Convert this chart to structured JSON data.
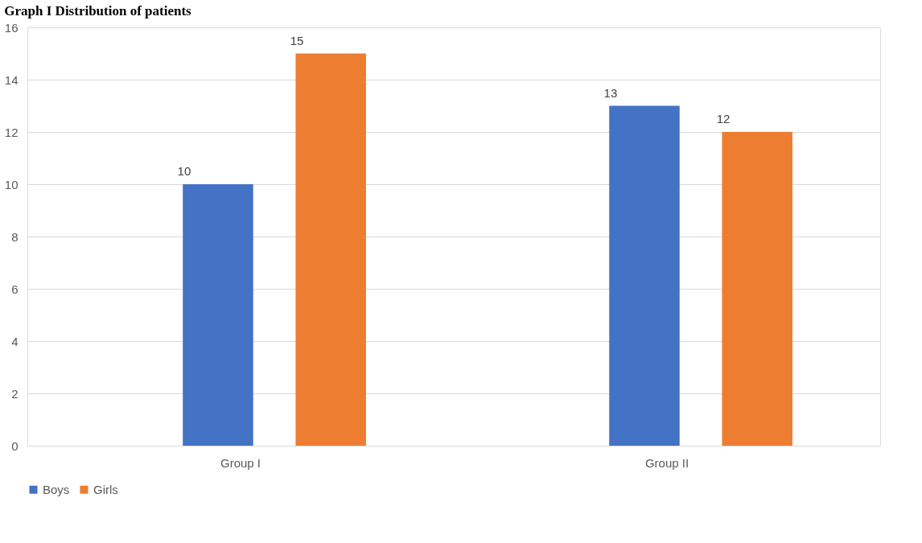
{
  "chart_data": {
    "type": "bar",
    "title": "Graph I Distribution of patients",
    "categories": [
      "Group I",
      "Group II"
    ],
    "series": [
      {
        "name": "Boys",
        "color": "#4472c4",
        "values": [
          10,
          13
        ]
      },
      {
        "name": "Girls",
        "color": "#ed7d31",
        "values": [
          15,
          12
        ]
      }
    ],
    "ylim": [
      0,
      16
    ],
    "yticks": [
      0,
      2,
      4,
      6,
      8,
      10,
      12,
      14,
      16
    ],
    "grid": "y",
    "legend": "bottom",
    "data_labels": true
  }
}
